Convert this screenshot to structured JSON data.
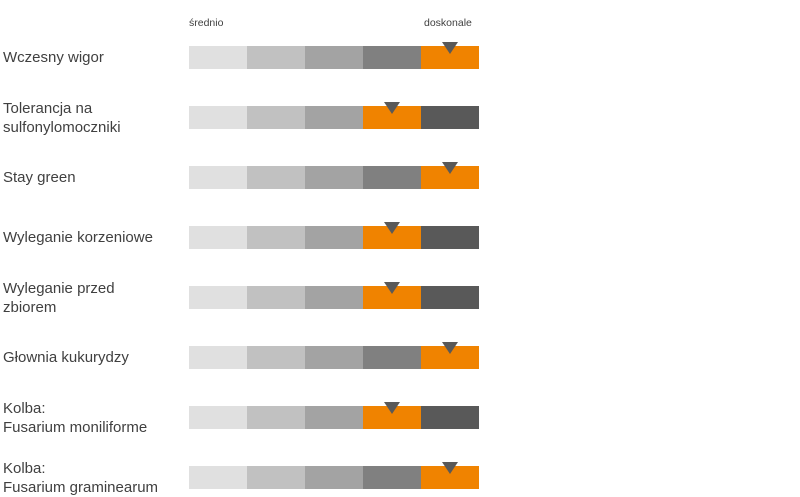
{
  "chart_data": {
    "type": "rating-scale",
    "scale": {
      "low_label": "średnio",
      "high_label": "doskonale",
      "segments": 5
    },
    "traits": [
      {
        "label_lines": [
          "Wczesny wigor"
        ],
        "rating": 5
      },
      {
        "label_lines": [
          "Tolerancja na",
          "sulfonylomoczniki"
        ],
        "rating": 4
      },
      {
        "label_lines": [
          "Stay green"
        ],
        "rating": 5
      },
      {
        "label_lines": [
          "Wyleganie korzeniowe"
        ],
        "rating": 4
      },
      {
        "label_lines": [
          "Wyleganie przed",
          "zbiorem"
        ],
        "rating": 4
      },
      {
        "label_lines": [
          "Głownia kukurydzy"
        ],
        "rating": 5
      },
      {
        "label_lines": [
          "Kolba:",
          "Fusarium moniliforme"
        ],
        "rating": 4
      },
      {
        "label_lines": [
          "Kolba:",
          "Fusarium graminearum"
        ],
        "rating": 5
      }
    ],
    "colors": {
      "segment_shades": [
        "#e0e0e0",
        "#c1c1c1",
        "#a3a3a3",
        "#808080",
        "#595959"
      ],
      "highlight": "#f08300",
      "marker": "#595959"
    }
  }
}
